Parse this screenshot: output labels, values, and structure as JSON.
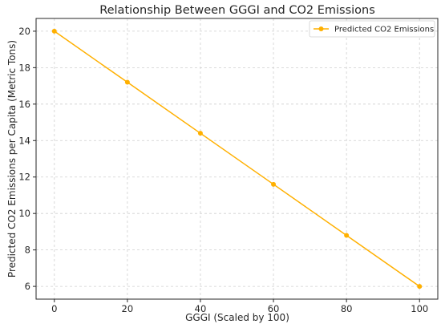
{
  "chart_data": {
    "type": "line",
    "title": "Relationship Between GGGI and CO2 Emissions",
    "xlabel": "GGGI (Scaled by 100)",
    "ylabel": "Predicted CO2 Emissions per Capita (Metric Tons)",
    "x": [
      0,
      20,
      40,
      60,
      80,
      100
    ],
    "series": [
      {
        "name": "Predicted CO2 Emissions",
        "values": [
          20.0,
          17.2,
          14.4,
          11.6,
          8.8,
          6.0
        ],
        "color": "#FFB000",
        "marker": "circle"
      }
    ],
    "xlim": [
      -5,
      105
    ],
    "ylim": [
      5.3,
      20.7
    ],
    "xticks": [
      0,
      20,
      40,
      60,
      80,
      100
    ],
    "yticks": [
      6,
      8,
      10,
      12,
      14,
      16,
      18,
      20
    ],
    "grid": true,
    "legend_position": "top-right"
  }
}
